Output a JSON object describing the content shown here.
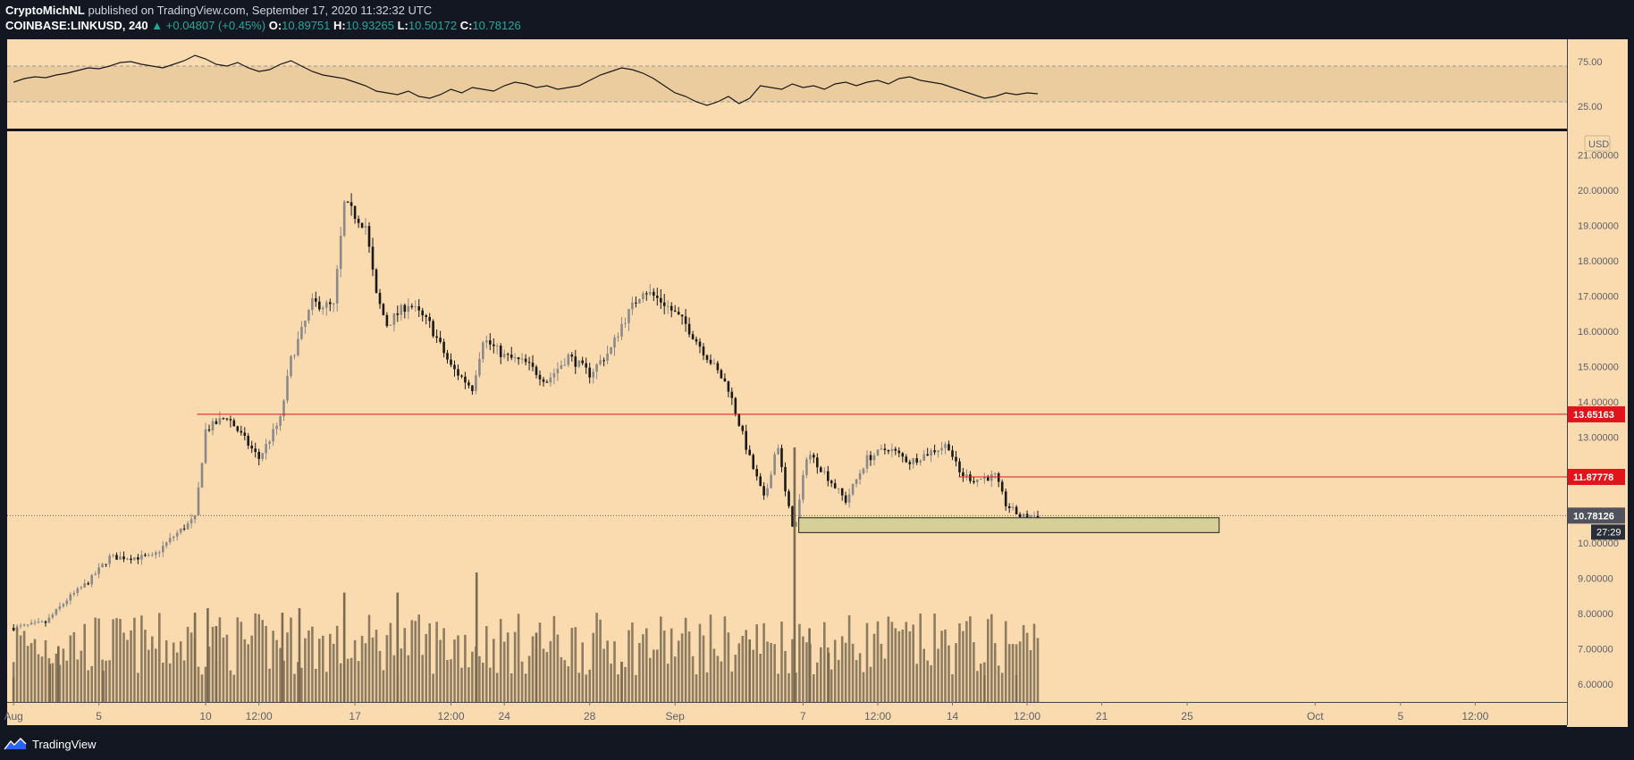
{
  "header": {
    "author": "CryptoMichNL",
    "published": "published on TradingView.com, September 17, 2020 11:32:32 UTC",
    "symbol": "COINBASE:LINKUSD, 240",
    "change_arrow": "▲",
    "change": "+0.04807 (+0.45%)",
    "o_label": "O:",
    "o_value": "10.89751",
    "h_label": "H:",
    "h_value": "10.93265",
    "l_label": "L:",
    "l_value": "10.50172",
    "c_label": "C:",
    "c_value": "10.78126"
  },
  "footer": {
    "brand": "TradingView"
  },
  "colors": {
    "page_bg": "#131722",
    "chart_bg": "#fadbb0",
    "rsi_band": "#ebcc9f",
    "candle": "#1a1a1a",
    "wick_up": "#8a8a8a",
    "volume": "#7a6b52",
    "resistance": "#e0141a",
    "zone_fill": "#d6cf98",
    "axis_text": "#5d606b",
    "current_label_bg": "#50535e"
  },
  "chart_data": [
    {
      "type": "line",
      "name": "rsi",
      "ylim": [
        0,
        100
      ],
      "levels": [
        30,
        70
      ],
      "y_ticks": [
        "75.00",
        "25.00"
      ],
      "x": [
        0.0,
        0.5,
        1.0,
        1.5,
        2.0,
        2.5,
        3.0,
        3.5,
        4.0,
        4.5,
        5.0,
        5.5,
        6.0,
        6.5,
        7.0,
        7.5,
        8.0,
        8.5,
        9.0,
        9.5,
        10.0,
        10.5,
        11.0,
        11.5,
        12.0,
        12.5,
        13.0,
        13.5,
        14.0,
        14.5,
        15.0,
        15.5,
        16.0,
        16.5,
        17.0,
        17.5,
        18.0,
        18.5,
        19.0,
        19.5,
        20.0,
        20.5,
        21.0,
        21.5,
        22.0,
        22.5,
        23.0,
        23.5,
        24.0,
        24.5,
        25.0,
        25.5,
        26.0,
        26.5,
        27.0,
        27.5,
        28.0,
        28.5,
        29.0,
        29.5,
        30.0,
        30.5,
        31.0,
        31.5,
        32.0,
        32.5,
        33.0,
        33.5,
        34.0,
        34.5,
        35.0,
        35.5,
        36.0,
        36.5,
        37.0,
        37.5,
        38.0,
        38.5,
        39.0,
        39.5,
        40.0,
        40.5,
        41.0,
        41.5,
        42.0,
        42.5,
        43.0,
        43.5,
        44.0,
        44.5,
        45.0,
        45.5,
        46.0,
        46.5,
        47.0,
        47.5,
        48.0
      ],
      "values": [
        52,
        56,
        58,
        57,
        60,
        62,
        65,
        68,
        67,
        70,
        74,
        75,
        72,
        70,
        68,
        72,
        76,
        82,
        78,
        72,
        70,
        74,
        68,
        64,
        66,
        72,
        76,
        70,
        64,
        60,
        58,
        56,
        52,
        48,
        42,
        40,
        38,
        42,
        36,
        34,
        38,
        44,
        40,
        46,
        44,
        42,
        48,
        52,
        50,
        46,
        48,
        44,
        46,
        48,
        54,
        60,
        64,
        68,
        66,
        62,
        56,
        48,
        40,
        36,
        30,
        26,
        30,
        36,
        28,
        34,
        48,
        46,
        44,
        50,
        46,
        48,
        44,
        50,
        52,
        48,
        52,
        54,
        50,
        56,
        58,
        54,
        52,
        50,
        46,
        42,
        38,
        34,
        36,
        40,
        38,
        40,
        39
      ]
    },
    {
      "type": "candlestick",
      "name": "price",
      "title": "COINBASE:LINKUSD, 240",
      "unit": "USD",
      "ylim": [
        5.5,
        21.8
      ],
      "y_ticks": [
        "6.00000",
        "7.00000",
        "8.00000",
        "9.00000",
        "10.00000",
        "11.00000",
        "12.00000",
        "13.00000",
        "14.00000",
        "15.00000",
        "16.00000",
        "17.00000",
        "18.00000",
        "19.00000",
        "20.00000",
        "21.00000"
      ],
      "x_ticks": [
        {
          "label": "Aug",
          "day": 0
        },
        {
          "label": "5",
          "day": 4
        },
        {
          "label": "10",
          "day": 9
        },
        {
          "label": "12:00",
          "day": 11.5
        },
        {
          "label": "17",
          "day": 16
        },
        {
          "label": "12:00",
          "day": 20.5
        },
        {
          "label": "24",
          "day": 23
        },
        {
          "label": "28",
          "day": 27
        },
        {
          "label": "Sep",
          "day": 31
        },
        {
          "label": "7",
          "day": 37
        },
        {
          "label": "12:00",
          "day": 40.5
        },
        {
          "label": "14",
          "day": 44
        },
        {
          "label": "12:00",
          "day": 47.5
        },
        {
          "label": "21",
          "day": 51
        },
        {
          "label": "25",
          "day": 55
        },
        {
          "label": "Oct",
          "day": 61
        },
        {
          "label": "5",
          "day": 65
        },
        {
          "label": "12:00",
          "day": 68.5
        }
      ],
      "x_range_days": [
        -0.3,
        72.8
      ],
      "path": [
        [
          0,
          7.6
        ],
        [
          1.5,
          7.75
        ],
        [
          2.5,
          8.4
        ],
        [
          3.5,
          8.9
        ],
        [
          4.5,
          9.6
        ],
        [
          6.5,
          9.6
        ],
        [
          7.5,
          10.2
        ],
        [
          8.5,
          10.7
        ],
        [
          9.0,
          13.2
        ],
        [
          10.0,
          13.6
        ],
        [
          11.5,
          12.4
        ],
        [
          12.5,
          13.5
        ],
        [
          13.0,
          15.2
        ],
        [
          14.0,
          16.8
        ],
        [
          15.0,
          16.7
        ],
        [
          15.5,
          19.6
        ],
        [
          16.5,
          19.0
        ],
        [
          17.0,
          17.0
        ],
        [
          17.5,
          16.2
        ],
        [
          18.5,
          16.8
        ],
        [
          19.5,
          16.2
        ],
        [
          20.5,
          15.0
        ],
        [
          21.5,
          14.4
        ],
        [
          22.0,
          15.8
        ],
        [
          23.0,
          15.3
        ],
        [
          24.0,
          15.1
        ],
        [
          25.0,
          14.6
        ],
        [
          26.0,
          15.3
        ],
        [
          27.0,
          14.8
        ],
        [
          28.0,
          15.5
        ],
        [
          28.5,
          16.2
        ],
        [
          29.5,
          17.2
        ],
        [
          30.5,
          16.8
        ],
        [
          31.5,
          16.2
        ],
        [
          32.5,
          15.3
        ],
        [
          33.5,
          14.4
        ],
        [
          34.5,
          12.4
        ],
        [
          35.2,
          11.2
        ],
        [
          35.8,
          12.9
        ],
        [
          36.2,
          11.3
        ],
        [
          36.6,
          10.3
        ],
        [
          37.2,
          12.6
        ],
        [
          38.0,
          12.0
        ],
        [
          39.0,
          11.2
        ],
        [
          40.0,
          12.4
        ],
        [
          41.0,
          12.7
        ],
        [
          42.0,
          12.3
        ],
        [
          43.0,
          12.6
        ],
        [
          43.8,
          12.8
        ],
        [
          44.3,
          12.0
        ],
        [
          45.0,
          11.8
        ],
        [
          46.0,
          11.9
        ],
        [
          46.5,
          11.1
        ],
        [
          47.2,
          10.75
        ],
        [
          48.0,
          10.78
        ]
      ],
      "current": {
        "value": 10.78126,
        "label": "10.78126",
        "countdown": "27:29"
      },
      "levels": [
        {
          "value": 13.65163,
          "label": "13.65163",
          "from_day": 8.6
        },
        {
          "value": 11.87778,
          "label": "11.87778",
          "from_day": 44.3
        }
      ],
      "zone": {
        "y_top": 10.72,
        "y_bottom": 10.3,
        "from_day": 36.8,
        "to_day": 56.5
      },
      "volume": {
        "x": [
          0,
          1.7,
          2.1,
          4.2,
          8.5,
          9.1,
          9.5,
          12.6,
          13.4,
          15.5,
          18.0,
          21.7,
          24.5,
          28.5,
          34.5,
          36.6,
          37.3,
          38.2,
          45.5,
          47.0
        ],
        "values": [
          55,
          85,
          125,
          70,
          200,
          210,
          170,
          200,
          210,
          245,
          245,
          290,
          155,
          90,
          140,
          570,
          165,
          110,
          60,
          60
        ]
      }
    }
  ]
}
